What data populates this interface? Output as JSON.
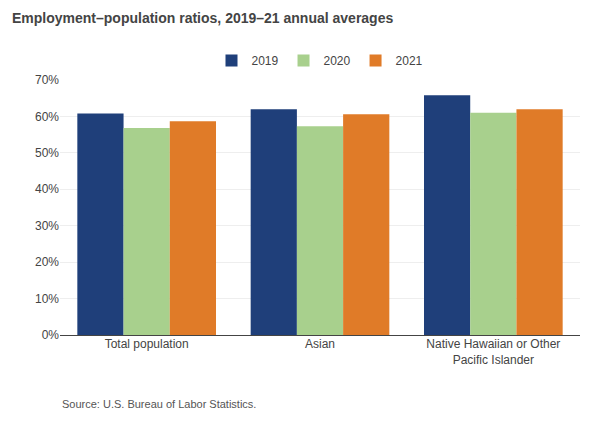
{
  "chart_data": {
    "type": "bar",
    "title": "Employment–population ratios, 2019–21 annual averages",
    "categories": [
      "Total population",
      "Asian",
      "Native Hawaiian or Other\nPacific Islander"
    ],
    "series": [
      {
        "name": "2019",
        "color": "#1f3f7a",
        "values": [
          60.8,
          62.0,
          65.8
        ]
      },
      {
        "name": "2020",
        "color": "#a8d08d",
        "values": [
          56.8,
          57.3,
          61.0
        ]
      },
      {
        "name": "2021",
        "color": "#e07b28",
        "values": [
          58.7,
          60.6,
          62.0
        ]
      }
    ],
    "ylim": [
      0,
      70
    ],
    "yticks": [
      {
        "value": 0,
        "label": "0%"
      },
      {
        "value": 10,
        "label": "10%"
      },
      {
        "value": 20,
        "label": "20%"
      },
      {
        "value": 30,
        "label": "30%"
      },
      {
        "value": 40,
        "label": "40%"
      },
      {
        "value": 50,
        "label": "50%"
      },
      {
        "value": 60,
        "label": "60%"
      },
      {
        "value": 70,
        "label": "70%"
      }
    ],
    "grid": true,
    "legend": "top",
    "annotations": [
      "Source: U.S. Bureau of Labor Statistics."
    ]
  }
}
